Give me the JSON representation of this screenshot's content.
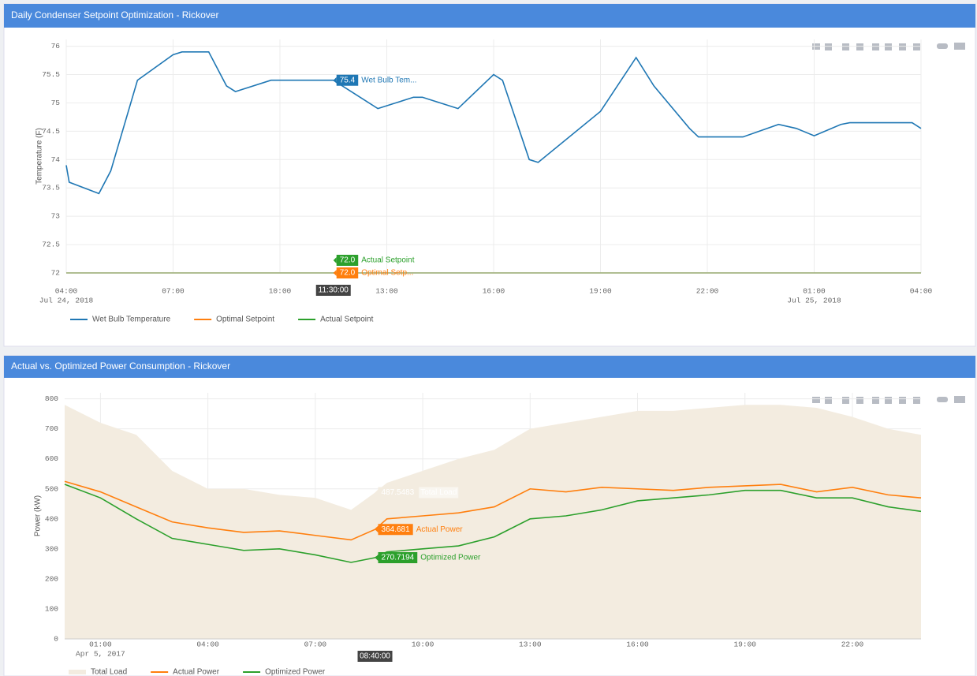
{
  "chart_data": [
    {
      "type": "line",
      "title": "Daily Condenser Setpoint Optimization - Rickover",
      "y_label": "Temperature (F)",
      "x": [
        "2018-07-24T04:00",
        "2018-07-24T04:05",
        "2018-07-24T04:55",
        "2018-07-24T05:15",
        "2018-07-24T06:00",
        "2018-07-24T07:00",
        "2018-07-24T07:15",
        "2018-07-24T08:00",
        "2018-07-24T08:30",
        "2018-07-24T08:45",
        "2018-07-24T09:45",
        "2018-07-24T11:30",
        "2018-07-24T12:00",
        "2018-07-24T12:45",
        "2018-07-24T13:45",
        "2018-07-24T14:00",
        "2018-07-24T15:00",
        "2018-07-24T16:00",
        "2018-07-24T16:15",
        "2018-07-24T17:00",
        "2018-07-24T17:15",
        "2018-07-24T19:00",
        "2018-07-24T20:00",
        "2018-07-24T20:30",
        "2018-07-24T21:30",
        "2018-07-24T21:45",
        "2018-07-24T23:00",
        "2018-07-25T00:00",
        "2018-07-25T00:30",
        "2018-07-25T01:00",
        "2018-07-25T01:45",
        "2018-07-25T02:00",
        "2018-07-25T03:45",
        "2018-07-25T04:00"
      ],
      "series": [
        {
          "name": "Wet Bulb Temperature",
          "color": "#1f77b4",
          "values": [
            73.9,
            73.6,
            73.4,
            73.8,
            75.4,
            75.85,
            75.9,
            75.9,
            75.3,
            75.2,
            75.4,
            75.4,
            75.2,
            74.9,
            75.1,
            75.1,
            74.9,
            75.5,
            75.4,
            74.0,
            73.95,
            74.85,
            75.8,
            75.3,
            74.55,
            74.4,
            74.4,
            74.62,
            74.55,
            74.42,
            74.62,
            74.65,
            74.65,
            74.55
          ]
        },
        {
          "name": "Optimal Setpoint",
          "color": "#ff7f0e",
          "values": [
            72,
            72,
            72,
            72,
            72,
            72,
            72,
            72,
            72,
            72,
            72,
            72,
            72,
            72,
            72,
            72,
            72,
            72,
            72,
            72,
            72,
            72,
            72,
            72,
            72,
            72,
            72,
            72,
            72,
            72,
            72,
            72,
            72,
            72
          ]
        },
        {
          "name": "Actual Setpoint",
          "color": "#2ca02c",
          "values": [
            72,
            72,
            72,
            72,
            72,
            72,
            72,
            72,
            72,
            72,
            72,
            72,
            72,
            72,
            72,
            72,
            72,
            72,
            72,
            72,
            72,
            72,
            72,
            72,
            72,
            72,
            72,
            72,
            72,
            72,
            72,
            72,
            72,
            72
          ]
        }
      ],
      "xlim": [
        "2018-07-24T04:00",
        "2018-07-25T04:00"
      ],
      "xticks": [
        {
          "value": "2018-07-24T04:00",
          "label": "04:00",
          "date_label": "Jul 24, 2018"
        },
        {
          "value": "2018-07-24T07:00",
          "label": "07:00"
        },
        {
          "value": "2018-07-24T10:00",
          "label": "10:00"
        },
        {
          "value": "2018-07-24T13:00",
          "label": "13:00"
        },
        {
          "value": "2018-07-24T16:00",
          "label": "16:00"
        },
        {
          "value": "2018-07-24T19:00",
          "label": "19:00"
        },
        {
          "value": "2018-07-24T22:00",
          "label": "22:00"
        },
        {
          "value": "2018-07-25T01:00",
          "label": "01:00",
          "date_label": "Jul 25, 2018"
        },
        {
          "value": "2018-07-25T04:00",
          "label": "04:00"
        }
      ],
      "ylim": [
        72,
        76.12
      ],
      "yticks": [
        72,
        72.5,
        73,
        73.5,
        74,
        74.5,
        75,
        75.5,
        76
      ],
      "grid": true,
      "hover": {
        "x": "2018-07-24T11:30",
        "x_label": "11:30:00",
        "points": [
          {
            "value": 75.4,
            "label": "75.4",
            "name": "Wet Bulb Tem..."
          },
          {
            "value": 72,
            "label": "72.0",
            "name": "Optimal Setp..."
          },
          {
            "value": 72,
            "label": "72.0",
            "name": "Actual Setpoint"
          }
        ]
      }
    },
    {
      "type": "line",
      "title": "Actual vs. Optimized Power Consumption - Rickover",
      "y_label": "Power (kW)",
      "x": [
        "2017-04-05T00:00",
        "2017-04-05T01:00",
        "2017-04-05T02:00",
        "2017-04-05T03:00",
        "2017-04-05T04:00",
        "2017-04-05T05:00",
        "2017-04-05T06:00",
        "2017-04-05T07:00",
        "2017-04-05T08:00",
        "2017-04-05T08:40",
        "2017-04-05T09:00",
        "2017-04-05T10:00",
        "2017-04-05T11:00",
        "2017-04-05T12:00",
        "2017-04-05T13:00",
        "2017-04-05T14:00",
        "2017-04-05T15:00",
        "2017-04-05T16:00",
        "2017-04-05T17:00",
        "2017-04-05T18:00",
        "2017-04-05T19:00",
        "2017-04-05T20:00",
        "2017-04-05T21:00",
        "2017-04-05T22:00",
        "2017-04-05T23:00",
        "2017-04-05T23:55"
      ],
      "series": [
        {
          "name": "Total Load",
          "type": "area",
          "color": "#f3ece0",
          "values": [
            780,
            720,
            680,
            560,
            500,
            500,
            480,
            470,
            430,
            487.5483,
            520,
            560,
            600,
            630,
            700,
            720,
            740,
            760,
            760,
            770,
            780,
            780,
            770,
            740,
            700,
            680
          ]
        },
        {
          "name": "Actual Power",
          "color": "#ff7f0e",
          "values": [
            525,
            490,
            440,
            390,
            370,
            355,
            360,
            345,
            330,
            364.681,
            400,
            410,
            420,
            440,
            500,
            490,
            505,
            500,
            495,
            505,
            510,
            515,
            490,
            505,
            480,
            470
          ]
        },
        {
          "name": "Optimized Power",
          "color": "#2ca02c",
          "values": [
            515,
            470,
            400,
            335,
            315,
            295,
            300,
            280,
            255,
            270.7194,
            290,
            300,
            310,
            340,
            400,
            410,
            430,
            460,
            470,
            480,
            495,
            495,
            470,
            470,
            440,
            425
          ]
        }
      ],
      "xlim": [
        "2017-04-05T00:00",
        "2017-04-05T23:55"
      ],
      "xticks": [
        {
          "value": "2017-04-05T01:00",
          "label": "01:00",
          "date_label": "Apr 5, 2017"
        },
        {
          "value": "2017-04-05T04:00",
          "label": "04:00"
        },
        {
          "value": "2017-04-05T07:00",
          "label": "07:00"
        },
        {
          "value": "2017-04-05T10:00",
          "label": "10:00"
        },
        {
          "value": "2017-04-05T13:00",
          "label": "13:00"
        },
        {
          "value": "2017-04-05T16:00",
          "label": "16:00"
        },
        {
          "value": "2017-04-05T19:00",
          "label": "19:00"
        },
        {
          "value": "2017-04-05T22:00",
          "label": "22:00"
        }
      ],
      "ylim": [
        0,
        820
      ],
      "yticks": [
        0,
        100,
        200,
        300,
        400,
        500,
        600,
        700,
        800
      ],
      "grid": true,
      "hover": {
        "x": "2017-04-05T08:40",
        "x_label": "08:40:00",
        "points": [
          {
            "value": 487.5483,
            "name": "Total Load"
          },
          {
            "value": 364.681,
            "name": "Actual Power"
          },
          {
            "value": 270.7194,
            "name": "Optimized Power"
          }
        ]
      }
    }
  ]
}
